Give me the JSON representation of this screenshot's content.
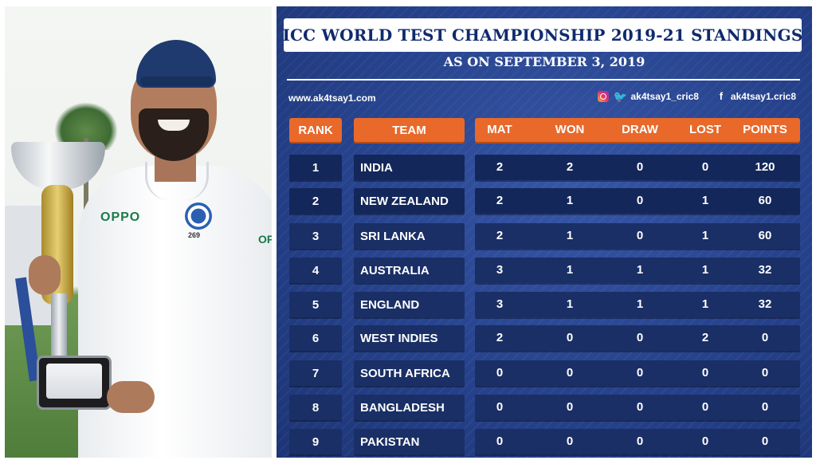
{
  "photo": {
    "shirt_sponsor": "OPPO",
    "badge_number": "269"
  },
  "header": {
    "title": "ICC WORLD TEST CHAMPIONSHIP 2019-21 STANDINGS",
    "subtitle": "AS ON SEPTEMBER 3, 2019",
    "website": "www.ak4tsay1.com",
    "instagram_twitter_handle": "ak4tsay1_cric8",
    "facebook_handle": "ak4tsay1.cric8"
  },
  "columns": {
    "rank": "RANK",
    "team": "TEAM",
    "mat": "MAT",
    "won": "WON",
    "draw": "DRAW",
    "lost": "LOST",
    "points": "POINTS"
  },
  "colors": {
    "panel_bg": "#26428c",
    "header_orange": "#e8692a",
    "cell_navy": "#1a2f66",
    "title_text": "#0f2a6e"
  },
  "icons": [
    "instagram-icon",
    "twitter-icon",
    "facebook-icon"
  ],
  "rows": [
    {
      "rank": "1",
      "team": "INDIA",
      "mat": "2",
      "won": "2",
      "draw": "0",
      "lost": "0",
      "points": "120"
    },
    {
      "rank": "2",
      "team": "NEW ZEALAND",
      "mat": "2",
      "won": "1",
      "draw": "0",
      "lost": "1",
      "points": "60"
    },
    {
      "rank": "3",
      "team": "SRI LANKA",
      "mat": "2",
      "won": "1",
      "draw": "0",
      "lost": "1",
      "points": "60"
    },
    {
      "rank": "4",
      "team": "AUSTRALIA",
      "mat": "3",
      "won": "1",
      "draw": "1",
      "lost": "1",
      "points": "32"
    },
    {
      "rank": "5",
      "team": "ENGLAND",
      "mat": "3",
      "won": "1",
      "draw": "1",
      "lost": "1",
      "points": "32"
    },
    {
      "rank": "6",
      "team": "WEST INDIES",
      "mat": "2",
      "won": "0",
      "draw": "0",
      "lost": "2",
      "points": "0"
    },
    {
      "rank": "7",
      "team": "SOUTH AFRICA",
      "mat": "0",
      "won": "0",
      "draw": "0",
      "lost": "0",
      "points": "0"
    },
    {
      "rank": "8",
      "team": "BANGLADESH",
      "mat": "0",
      "won": "0",
      "draw": "0",
      "lost": "0",
      "points": "0"
    },
    {
      "rank": "9",
      "team": "PAKISTAN",
      "mat": "0",
      "won": "0",
      "draw": "0",
      "lost": "0",
      "points": "0"
    }
  ]
}
